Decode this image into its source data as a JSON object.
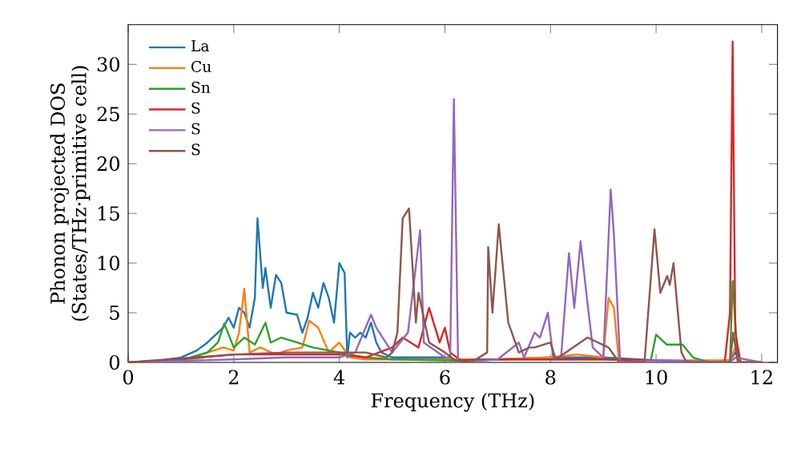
{
  "chart_data": {
    "type": "line",
    "xlabel": "Frequency (THz)",
    "ylabel": "Phonon projected DOS\n(States/THz·primitive cell)",
    "xlim": [
      0,
      12.3
    ],
    "ylim": [
      0,
      34
    ],
    "xticks": [
      0,
      2,
      4,
      6,
      8,
      10,
      12
    ],
    "yticks": [
      0,
      5,
      10,
      15,
      20,
      25,
      30
    ],
    "legend": "top left",
    "line_style": "solid",
    "series": [
      {
        "name": "La",
        "color": "#1f77b4",
        "x": [
          0,
          0.5,
          1.0,
          1.3,
          1.5,
          1.7,
          1.8,
          1.9,
          2.0,
          2.1,
          2.2,
          2.3,
          2.4,
          2.45,
          2.55,
          2.6,
          2.7,
          2.8,
          2.9,
          3.0,
          3.2,
          3.3,
          3.4,
          3.5,
          3.6,
          3.7,
          3.8,
          3.9,
          4.0,
          4.1,
          4.15,
          4.2,
          4.3,
          4.4,
          4.5,
          4.6,
          4.7,
          4.8,
          5.0,
          5.5,
          6.0,
          6.1,
          7.0,
          8.0,
          9.0,
          10.0,
          10.5,
          11.4,
          11.5,
          11.6,
          12.0
        ],
        "values": [
          0,
          0.1,
          0.5,
          1.2,
          2.0,
          3.0,
          3.5,
          4.5,
          3.5,
          5.5,
          5.0,
          3.5,
          6.5,
          14.5,
          7.5,
          9.5,
          5.5,
          8.8,
          8.0,
          5.0,
          4.8,
          3.0,
          4.5,
          7.0,
          5.5,
          8.0,
          6.5,
          4.0,
          10.0,
          9.0,
          0.5,
          3.0,
          2.5,
          3.0,
          2.5,
          4.0,
          2.0,
          1.0,
          0.5,
          0.5,
          0.5,
          0.2,
          0.3,
          0.5,
          0.5,
          0.2,
          0,
          0.2,
          1.0,
          0,
          0
        ]
      },
      {
        "name": "Cu",
        "color": "#ff7f0e",
        "x": [
          1.2,
          1.5,
          1.8,
          2.0,
          2.1,
          2.2,
          2.3,
          2.5,
          2.8,
          3.0,
          3.3,
          3.43,
          3.6,
          3.8,
          4.0,
          4.2,
          4.5,
          5.0,
          6.0,
          7.0,
          8.0,
          8.5,
          9.0,
          9.1,
          9.2,
          9.3,
          10.0,
          11.4,
          11.5,
          11.6,
          12.0
        ],
        "values": [
          0.5,
          1.0,
          1.5,
          1.2,
          3.0,
          7.4,
          1.0,
          1.5,
          0.8,
          1.2,
          1.5,
          4.2,
          3.5,
          1.0,
          2.0,
          0.5,
          0.3,
          0.3,
          0.3,
          0.3,
          0.5,
          0.8,
          0.5,
          6.5,
          5.5,
          0,
          0.2,
          0.2,
          1.5,
          0,
          0
        ]
      },
      {
        "name": "Sn",
        "color": "#2ca02c",
        "x": [
          0,
          1.0,
          1.5,
          1.7,
          1.82,
          2.0,
          2.2,
          2.4,
          2.6,
          2.7,
          2.9,
          3.2,
          3.5,
          4.0,
          4.5,
          5.0,
          6.0,
          7.0,
          8.0,
          9.0,
          9.9,
          10.0,
          10.2,
          10.5,
          10.7,
          11.0,
          11.4,
          11.45,
          11.55,
          12.0
        ],
        "values": [
          0,
          0.2,
          1.0,
          2.0,
          3.9,
          1.5,
          2.5,
          1.8,
          4.0,
          2.0,
          2.5,
          2.0,
          1.5,
          1.0,
          0.5,
          0.3,
          0.2,
          0.3,
          0.3,
          0.3,
          0.2,
          2.8,
          1.8,
          1.8,
          0.5,
          0,
          0,
          8.2,
          0,
          0
        ]
      },
      {
        "name": "S",
        "color": "#d62728",
        "x": [
          0,
          1.0,
          2.0,
          3.0,
          4.0,
          4.5,
          5.0,
          5.2,
          5.5,
          5.7,
          5.9,
          6.0,
          6.1,
          6.3,
          7.0,
          8.0,
          9.0,
          10.0,
          11.3,
          11.4,
          11.45,
          11.5,
          11.6,
          12.0
        ],
        "values": [
          0,
          0.3,
          0.8,
          0.8,
          0.8,
          0.5,
          1.5,
          2.5,
          1.5,
          5.5,
          2.0,
          3.5,
          1.0,
          0.2,
          0.3,
          0.3,
          0.3,
          0.2,
          0,
          5.0,
          32.3,
          3.0,
          0,
          0
        ]
      },
      {
        "name": "S",
        "color": "#9467bd",
        "x": [
          0,
          2.0,
          3.0,
          4.0,
          4.3,
          4.6,
          4.7,
          5.0,
          5.3,
          5.53,
          5.6,
          6.0,
          6.1,
          6.17,
          6.25,
          7.0,
          7.4,
          7.5,
          7.7,
          7.8,
          7.95,
          8.05,
          8.2,
          8.35,
          8.45,
          8.57,
          8.7,
          8.8,
          9.0,
          9.14,
          9.2,
          9.32,
          10.0,
          11.4,
          11.5,
          12.0
        ],
        "values": [
          0,
          0.3,
          0.5,
          0.5,
          1.0,
          4.8,
          3.5,
          1.0,
          3.0,
          13.3,
          2.0,
          0.5,
          0.5,
          26.5,
          0,
          0.3,
          2.0,
          0.5,
          3.0,
          2.5,
          5.0,
          0.5,
          0.5,
          11.0,
          5.5,
          12.2,
          6.0,
          1.5,
          0.5,
          17.4,
          13.0,
          0,
          0.2,
          0,
          0.5,
          0
        ]
      },
      {
        "name": "S",
        "color": "#8c564b",
        "x": [
          0,
          2.0,
          3.0,
          4.0,
          4.5,
          4.9,
          5.0,
          5.1,
          5.2,
          5.32,
          5.45,
          5.5,
          5.7,
          6.0,
          6.2,
          6.5,
          6.8,
          6.82,
          6.9,
          7.02,
          7.2,
          7.4,
          7.6,
          7.7,
          8.0,
          8.1,
          8.7,
          9.1,
          9.3,
          9.78,
          9.97,
          10.08,
          10.21,
          10.26,
          10.33,
          10.48,
          10.58,
          11.4,
          11.46,
          11.55,
          12.0
        ],
        "values": [
          0,
          0.8,
          1.0,
          1.0,
          1.0,
          0.5,
          1.0,
          3.0,
          14.5,
          15.5,
          4.0,
          7.0,
          2.0,
          1.0,
          0.2,
          0,
          1.0,
          11.6,
          5.0,
          13.9,
          4.0,
          1.0,
          1.5,
          1.5,
          2.0,
          0.3,
          2.5,
          1.5,
          0,
          0,
          13.4,
          7.0,
          8.7,
          7.8,
          10.0,
          1.0,
          0,
          0,
          3.0,
          0,
          0
        ]
      }
    ]
  }
}
